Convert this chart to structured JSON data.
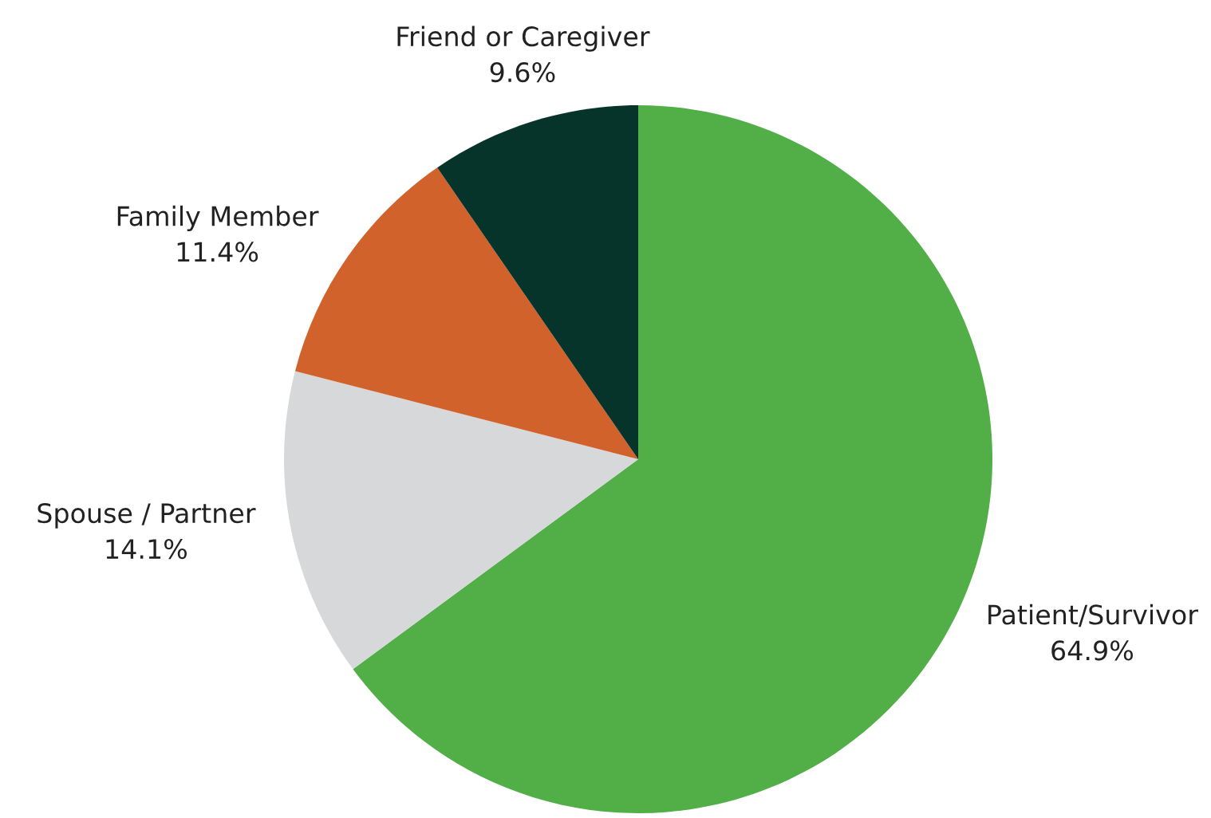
{
  "chart_data": {
    "type": "pie",
    "categories": [
      "Patient/Survivor",
      "Spouse / Partner",
      "Family Member",
      "Friend or Caregiver"
    ],
    "values": [
      64.9,
      14.1,
      11.4,
      9.6
    ],
    "value_labels": [
      "64.9%",
      "14.1%",
      "11.4%",
      "9.6%"
    ],
    "colors": [
      "#52ae47",
      "#d7d8da",
      "#d1622b",
      "#06342b"
    ],
    "legend": false
  }
}
